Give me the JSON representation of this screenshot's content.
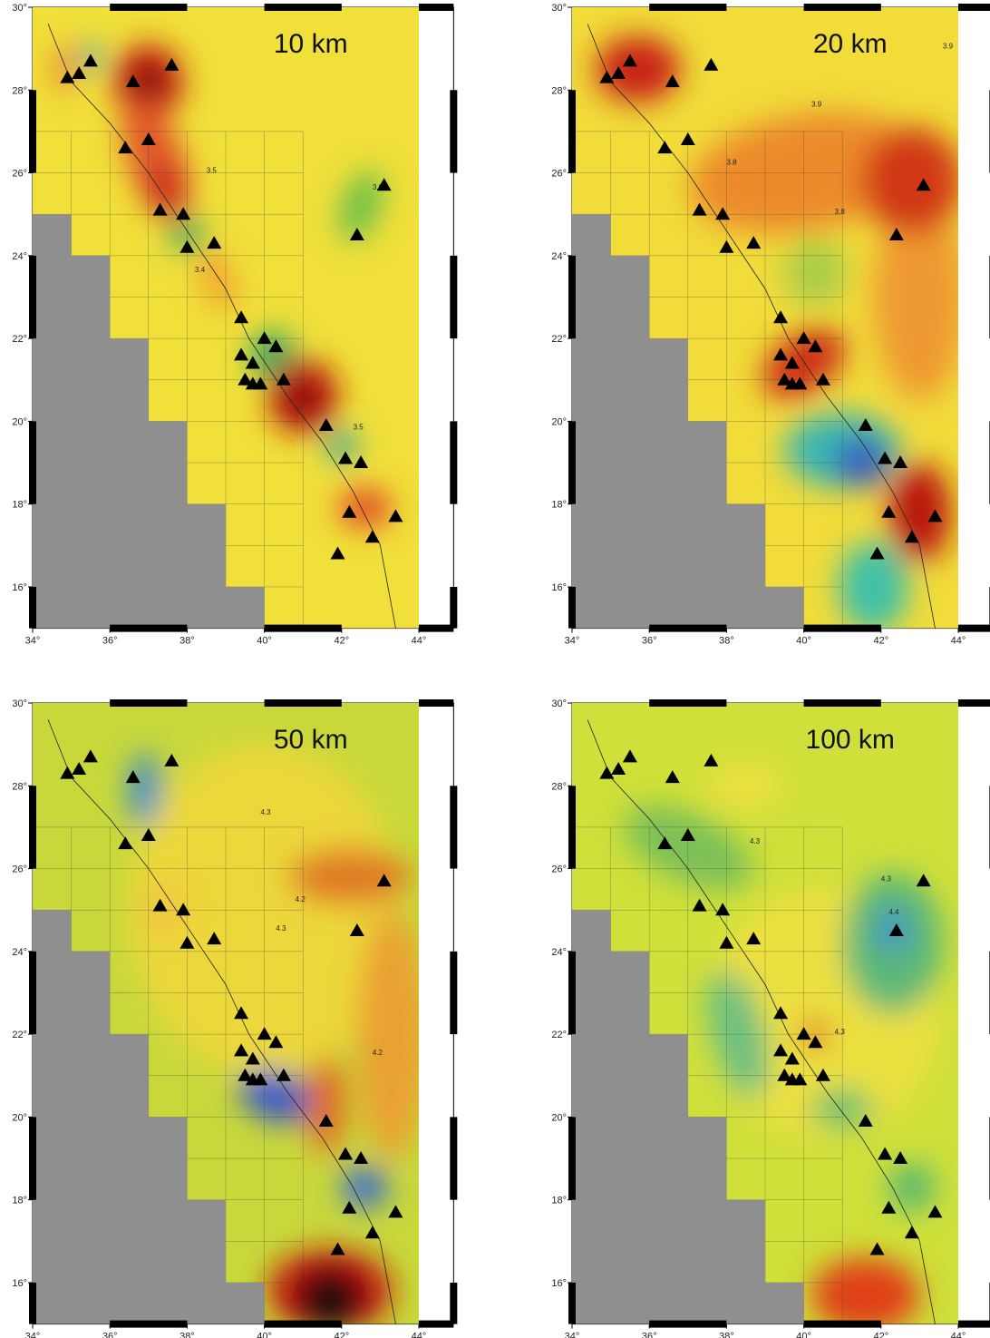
{
  "panels": [
    {
      "title": "10 km",
      "contour_labels": [
        "3.5",
        "3.6",
        "3.4",
        "3.5"
      ]
    },
    {
      "title": "20 km",
      "contour_labels": [
        "3.9",
        "3.9",
        "3.8",
        "3.8"
      ]
    },
    {
      "title": "50 km",
      "contour_labels": [
        "4.3",
        "4.3",
        "4.2",
        "4.2"
      ]
    },
    {
      "title": "100 km",
      "contour_labels": [
        "4.3",
        "4.3",
        "4.3",
        "4.4"
      ]
    }
  ],
  "xticks": [
    {
      "value": 34,
      "label": "34°"
    },
    {
      "value": 36,
      "label": "36°"
    },
    {
      "value": 38,
      "label": "38°"
    },
    {
      "value": 40,
      "label": "40°"
    },
    {
      "value": 42,
      "label": "42°"
    },
    {
      "value": 44,
      "label": "44°"
    }
  ],
  "yticks": [
    {
      "value": 16,
      "label": "16°"
    },
    {
      "value": 18,
      "label": "18°"
    },
    {
      "value": 20,
      "label": "20°"
    },
    {
      "value": 22,
      "label": "22°"
    },
    {
      "value": 24,
      "label": "24°"
    },
    {
      "value": 26,
      "label": "26°"
    },
    {
      "value": 28,
      "label": "28°"
    },
    {
      "value": 30,
      "label": "30°"
    }
  ],
  "stations": [
    [
      34.9,
      28.3
    ],
    [
      35.2,
      28.4
    ],
    [
      35.5,
      28.7
    ],
    [
      36.6,
      28.2
    ],
    [
      37.6,
      28.6
    ],
    [
      36.4,
      26.6
    ],
    [
      37.0,
      26.8
    ],
    [
      43.1,
      25.7
    ],
    [
      37.3,
      25.1
    ],
    [
      37.9,
      25.0
    ],
    [
      38.0,
      24.2
    ],
    [
      38.7,
      24.3
    ],
    [
      42.4,
      24.5
    ],
    [
      39.4,
      22.5
    ],
    [
      40.0,
      22.0
    ],
    [
      40.3,
      21.8
    ],
    [
      39.4,
      21.6
    ],
    [
      39.7,
      21.4
    ],
    [
      39.5,
      21.0
    ],
    [
      39.7,
      20.9
    ],
    [
      39.9,
      20.9
    ],
    [
      40.5,
      21.0
    ],
    [
      41.6,
      19.9
    ],
    [
      42.1,
      19.1
    ],
    [
      42.5,
      19.0
    ],
    [
      42.2,
      17.8
    ],
    [
      43.4,
      17.7
    ],
    [
      42.8,
      17.2
    ],
    [
      41.9,
      16.8
    ]
  ]
}
